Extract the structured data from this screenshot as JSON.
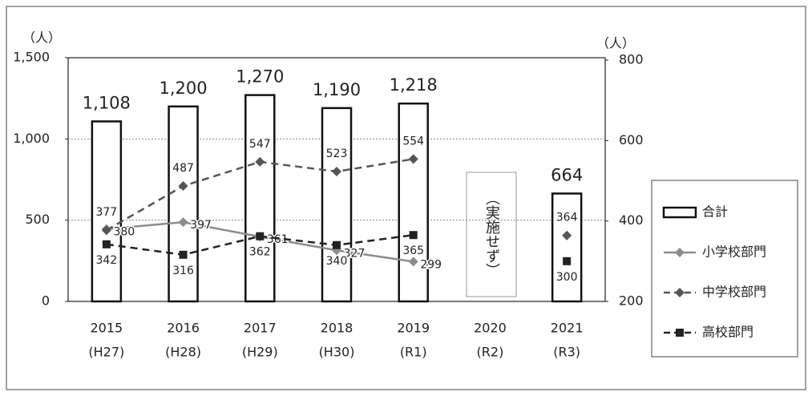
{
  "chart_data": {
    "type": "bar",
    "ylabel": "（人）",
    "y2label": "（人）",
    "categories": [
      [
        "2015",
        "(H27)"
      ],
      [
        "2016",
        "(H28)"
      ],
      [
        "2017",
        "(H29)"
      ],
      [
        "2018",
        "(H30)"
      ],
      [
        "2019",
        "(R1)"
      ],
      [
        "2020",
        "(R2)"
      ],
      [
        "2021",
        "(R3)"
      ]
    ],
    "ylim": [
      0,
      1500
    ],
    "yticks": [
      0,
      500,
      {
        "value": 1000,
        "label": "1,000"
      },
      {
        "value": 1500,
        "label": "1,500"
      }
    ],
    "y2lim": [
      200,
      800
    ],
    "y2ticks": [
      200,
      400,
      600,
      800
    ],
    "grid": true,
    "legend": "right",
    "annotation": "（実施せず）",
    "series": [
      {
        "name": "合計",
        "type": "bar",
        "color": "#ffffff",
        "stroke": "#111111",
        "values": [
          1108,
          1200,
          1270,
          1190,
          1218,
          null,
          664
        ],
        "value_labels": [
          "1,108",
          "1,200",
          "1,270",
          "1,190",
          "1,218",
          null,
          "664"
        ]
      },
      {
        "name": "小学校部門",
        "type": "line",
        "axis": "y2",
        "color": "#8c8c8c",
        "style": "solid",
        "marker": "diamond",
        "values": [
          380,
          397,
          361,
          327,
          299,
          null,
          null
        ]
      },
      {
        "name": "中学校部門",
        "type": "line",
        "axis": "y2",
        "color": "#555555",
        "style": "dashed",
        "marker": "diamond",
        "values": [
          377,
          487,
          547,
          523,
          554,
          null,
          364
        ]
      },
      {
        "name": "高校部門",
        "type": "line",
        "axis": "y2",
        "color": "#222222",
        "style": "dashed",
        "marker": "square",
        "values": [
          342,
          316,
          362,
          340,
          365,
          null,
          300
        ]
      }
    ]
  }
}
